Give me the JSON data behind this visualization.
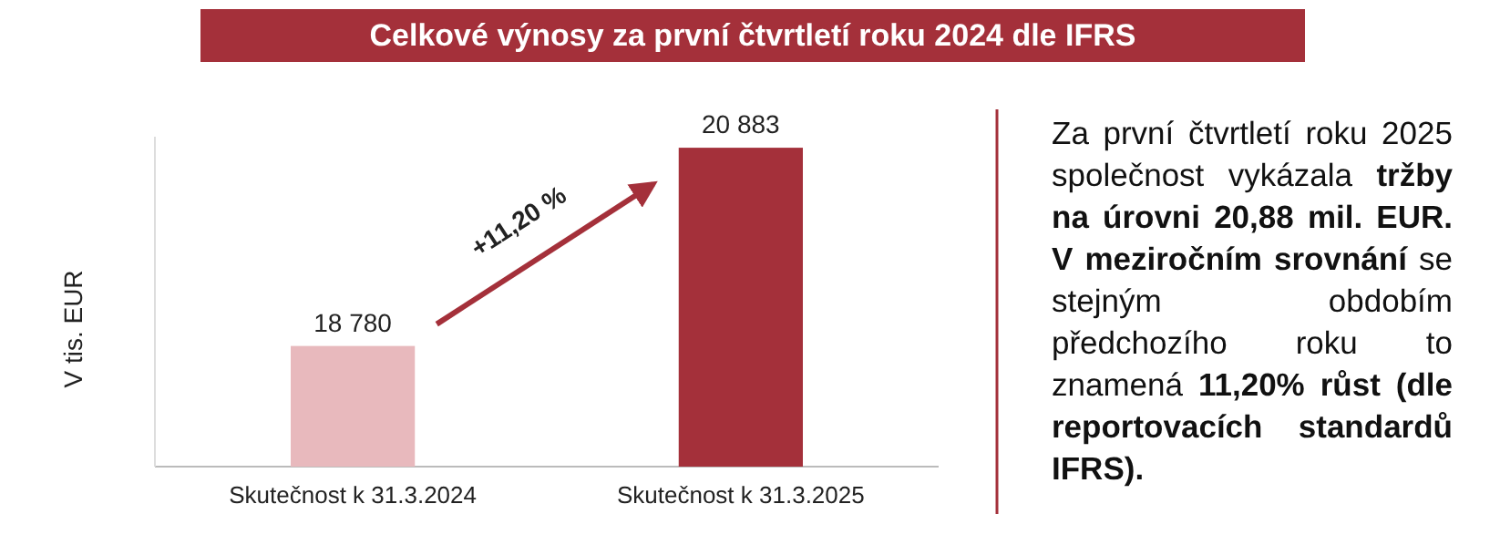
{
  "chart_data": {
    "type": "bar",
    "title": "Celkové výnosy za první čtvrtletí roku 2024 dle IFRS",
    "ylabel": "V tis. EUR",
    "categories": [
      "Skutečnost k 31.3.2024",
      "Skutečnost k 31.3.2025"
    ],
    "values": [
      18780,
      20883
    ],
    "colors": [
      "#e8b9bd",
      "#a4303a"
    ],
    "value_labels": [
      "18 780",
      "20 883"
    ],
    "ylim": [
      17500,
      21000
    ],
    "annotations": [
      "+11,20 %",
      "Za první čtvrtletí roku 2025 společnost vykázala ",
      "tržby na úrovni 20,88 mil. EUR. V meziročním srovnání",
      " se stejným obdobím předchozího roku to znamená ",
      "11,20% růst (dle reportovacích standardů IFRS)."
    ]
  }
}
